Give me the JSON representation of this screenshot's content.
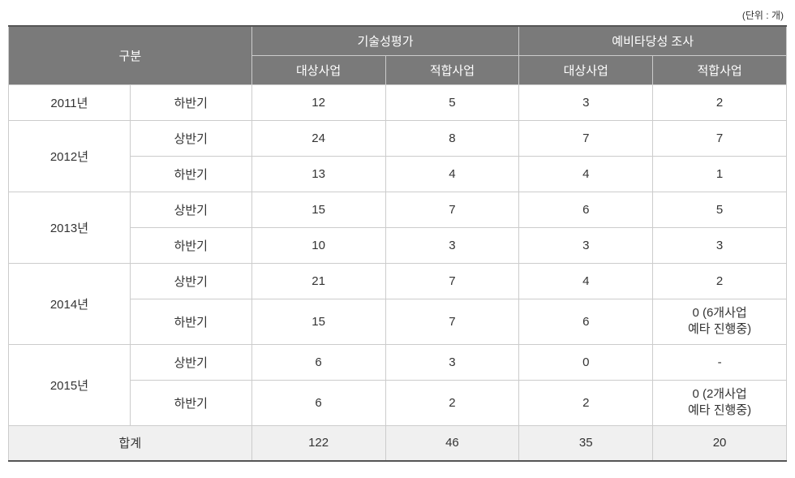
{
  "unit_label": "(단위 : 개)",
  "headers": {
    "category": "구분",
    "group1": "기술성평가",
    "group2": "예비타당성 조사",
    "sub_target": "대상사업",
    "sub_fit": "적합사업"
  },
  "rows": [
    {
      "year": "2011년",
      "half": "하반기",
      "c1": "12",
      "c2": "5",
      "c3": "3",
      "c4": "2"
    },
    {
      "year": "2012년",
      "half": "상반기",
      "c1": "24",
      "c2": "8",
      "c3": "7",
      "c4": "7"
    },
    {
      "year": "",
      "half": "하반기",
      "c1": "13",
      "c2": "4",
      "c3": "4",
      "c4": "1"
    },
    {
      "year": "2013년",
      "half": "상반기",
      "c1": "15",
      "c2": "7",
      "c3": "6",
      "c4": "5"
    },
    {
      "year": "",
      "half": "하반기",
      "c1": "10",
      "c2": "3",
      "c3": "3",
      "c4": "3"
    },
    {
      "year": "2014년",
      "half": "상반기",
      "c1": "21",
      "c2": "7",
      "c3": "4",
      "c4": "2"
    },
    {
      "year": "",
      "half": "하반기",
      "c1": "15",
      "c2": "7",
      "c3": "6",
      "c4": "0 (6개사업\n예타 진행중)"
    },
    {
      "year": "2015년",
      "half": "상반기",
      "c1": "6",
      "c2": "3",
      "c3": "0",
      "c4": "-"
    },
    {
      "year": "",
      "half": "하반기",
      "c1": "6",
      "c2": "2",
      "c3": "2",
      "c4": "0 (2개사업\n예타 진행중)"
    }
  ],
  "totals": {
    "label": "합계",
    "c1": "122",
    "c2": "46",
    "c3": "35",
    "c4": "20"
  },
  "styles": {
    "header_bg": "#7a7a7a",
    "header_fg": "#ffffff",
    "body_bg": "#ffffff",
    "body_fg": "#333333",
    "total_bg": "#f0f0f0",
    "border_color": "#cccccc",
    "top_border_color": "#555555",
    "font_size": 15
  }
}
